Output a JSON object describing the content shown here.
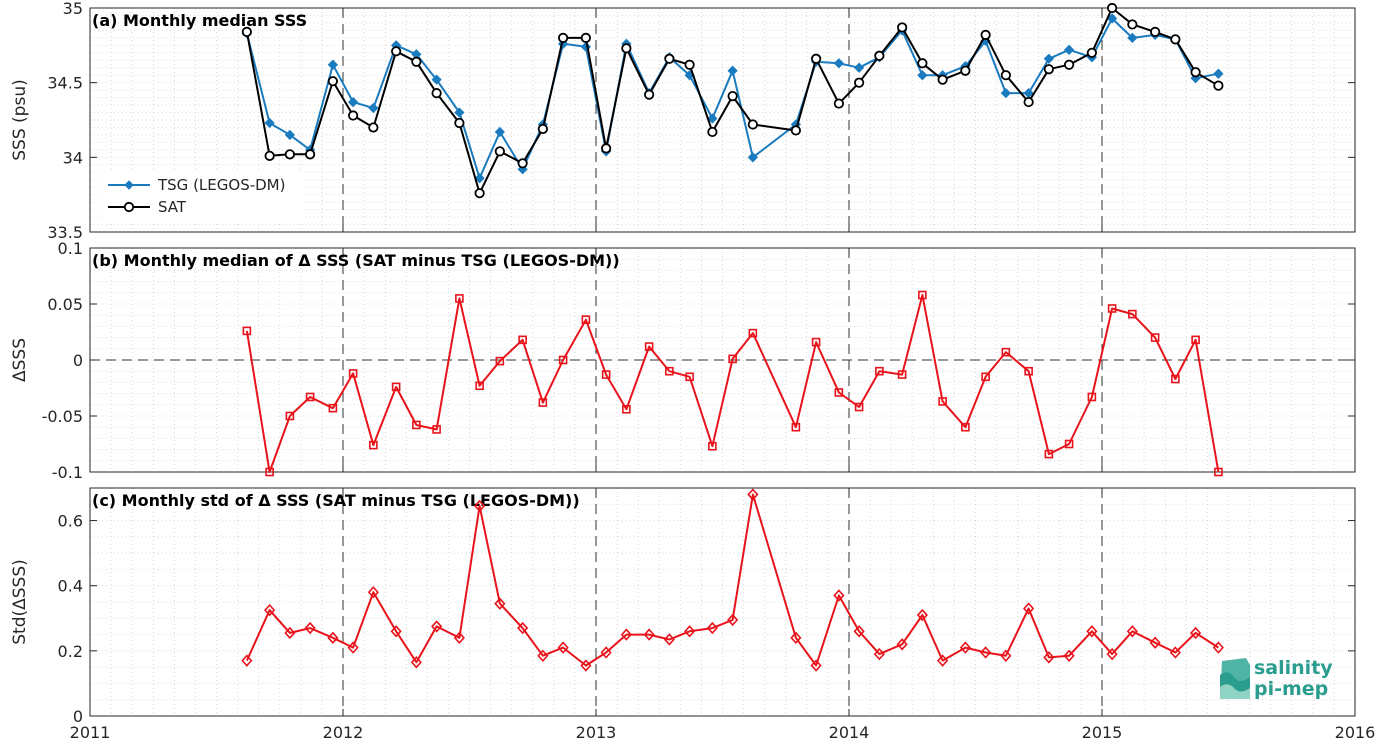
{
  "chart_data": [
    {
      "type": "line",
      "title": "(a) Monthly median SSS",
      "ylabel": "SSS (psu)",
      "xlim": [
        2011,
        2016
      ],
      "ylim": [
        33.5,
        35
      ],
      "yticks": [
        "33.5",
        "34",
        "34.5",
        "35"
      ],
      "xticks": [
        "2011",
        "2012",
        "2013",
        "2014",
        "2015",
        "2016"
      ],
      "vlines": [
        2012,
        2013,
        2014,
        2015
      ],
      "legend": {
        "placement": "lower-left",
        "entries": [
          "TSG (LEGOS-DM)",
          "SAT"
        ]
      },
      "series": [
        {
          "name": "TSG (LEGOS-DM)",
          "color": "#1a7bbf",
          "marker": "diamond",
          "x": [
            2011.62,
            2011.71,
            2011.79,
            2011.87,
            2011.96,
            2012.04,
            2012.12,
            2012.21,
            2012.29,
            2012.37,
            2012.46,
            2012.54,
            2012.62,
            2012.71,
            2012.79,
            2012.87,
            2012.96,
            2013.04,
            2013.12,
            2013.21,
            2013.29,
            2013.37,
            2013.46,
            2013.54,
            2013.62,
            2013.79,
            2013.87,
            2013.96,
            2014.04,
            2014.12,
            2014.21,
            2014.29,
            2014.37,
            2014.46,
            2014.54,
            2014.62,
            2014.71,
            2014.79,
            2014.87,
            2014.96,
            2015.04,
            2015.12,
            2015.21,
            2015.29,
            2015.37,
            2015.46
          ],
          "y": [
            34.83,
            34.23,
            34.15,
            34.05,
            34.62,
            34.37,
            34.33,
            34.75,
            34.69,
            34.52,
            34.3,
            33.86,
            34.17,
            33.92,
            34.22,
            34.76,
            34.74,
            34.04,
            34.76,
            34.43,
            34.67,
            34.55,
            34.26,
            34.58,
            34.0,
            34.22,
            34.64,
            34.63,
            34.6,
            34.67,
            34.85,
            34.55,
            34.55,
            34.61,
            34.78,
            34.43,
            34.43,
            34.66,
            34.72,
            34.67,
            34.93,
            34.8,
            34.82,
            34.79,
            34.53,
            34.56
          ]
        },
        {
          "name": "SAT",
          "color": "#000000",
          "marker": "circle",
          "x": [
            2011.62,
            2011.71,
            2011.79,
            2011.87,
            2011.96,
            2012.04,
            2012.12,
            2012.21,
            2012.29,
            2012.37,
            2012.46,
            2012.54,
            2012.62,
            2012.71,
            2012.79,
            2012.87,
            2012.96,
            2013.04,
            2013.12,
            2013.21,
            2013.29,
            2013.37,
            2013.46,
            2013.54,
            2013.62,
            2013.79,
            2013.87,
            2013.96,
            2014.04,
            2014.12,
            2014.21,
            2014.29,
            2014.37,
            2014.46,
            2014.54,
            2014.62,
            2014.71,
            2014.79,
            2014.87,
            2014.96,
            2015.04,
            2015.12,
            2015.21,
            2015.29,
            2015.37,
            2015.46
          ],
          "y": [
            34.84,
            34.01,
            34.02,
            34.02,
            34.51,
            34.28,
            34.2,
            34.71,
            34.64,
            34.43,
            34.23,
            33.76,
            34.04,
            33.96,
            34.19,
            34.8,
            34.8,
            34.06,
            34.73,
            34.42,
            34.66,
            34.62,
            34.17,
            34.41,
            34.22,
            34.18,
            34.66,
            34.36,
            34.5,
            34.68,
            34.87,
            34.63,
            34.52,
            34.58,
            34.82,
            34.55,
            34.37,
            34.59,
            34.62,
            34.7,
            35.0,
            34.89,
            34.84,
            34.79,
            34.57,
            34.48
          ]
        }
      ]
    },
    {
      "type": "line",
      "title": "(b) Monthly median of Δ SSS (SAT minus TSG (LEGOS-DM))",
      "ylabel": "ΔSSS",
      "xlim": [
        2011,
        2016
      ],
      "ylim": [
        -0.1,
        0.1
      ],
      "yticks": [
        "-0.1",
        "-0.05",
        "0",
        "0.05",
        "0.1"
      ],
      "xticks": [
        "2011",
        "2012",
        "2013",
        "2014",
        "2015",
        "2016"
      ],
      "vlines": [
        2012,
        2013,
        2014,
        2015
      ],
      "hline": 0,
      "series": [
        {
          "color": "#e8131b",
          "marker": "square",
          "x": [
            2011.62,
            2011.71,
            2011.79,
            2011.87,
            2011.96,
            2012.04,
            2012.12,
            2012.21,
            2012.29,
            2012.37,
            2012.46,
            2012.54,
            2012.62,
            2012.71,
            2012.79,
            2012.87,
            2012.96,
            2013.04,
            2013.12,
            2013.21,
            2013.29,
            2013.37,
            2013.46,
            2013.54,
            2013.62,
            2013.79,
            2013.87,
            2013.96,
            2014.04,
            2014.12,
            2014.21,
            2014.29,
            2014.37,
            2014.46,
            2014.54,
            2014.62,
            2014.71,
            2014.79,
            2014.87,
            2014.96,
            2015.04,
            2015.12,
            2015.21,
            2015.29,
            2015.37,
            2015.46
          ],
          "y": [
            0.026,
            -0.1,
            -0.05,
            -0.033,
            -0.043,
            -0.012,
            -0.076,
            -0.024,
            -0.058,
            -0.062,
            0.055,
            -0.023,
            -0.001,
            0.018,
            -0.038,
            0.0,
            0.036,
            -0.013,
            -0.044,
            0.012,
            -0.01,
            -0.015,
            -0.077,
            0.001,
            0.024,
            -0.06,
            0.016,
            -0.029,
            -0.042,
            -0.01,
            -0.013,
            0.058,
            -0.037,
            -0.06,
            -0.015,
            0.007,
            -0.01,
            -0.084,
            -0.075,
            -0.033,
            0.046,
            0.041,
            0.02,
            -0.017,
            0.018,
            -0.1
          ]
        }
      ]
    },
    {
      "type": "line",
      "title": "(c) Monthly std of Δ SSS (SAT minus TSG (LEGOS-DM))",
      "ylabel": "Std(ΔSSS)",
      "xlim": [
        2011,
        2016
      ],
      "ylim": [
        0,
        0.7
      ],
      "yticks": [
        "0",
        "0.2",
        "0.4",
        "0.6"
      ],
      "xticks": [
        "2011",
        "2012",
        "2013",
        "2014",
        "2015",
        "2016"
      ],
      "vlines": [
        2012,
        2013,
        2014,
        2015
      ],
      "series": [
        {
          "color": "#e8131b",
          "marker": "diamond",
          "x": [
            2011.62,
            2011.71,
            2011.79,
            2011.87,
            2011.96,
            2012.04,
            2012.12,
            2012.21,
            2012.29,
            2012.37,
            2012.46,
            2012.54,
            2012.62,
            2012.71,
            2012.79,
            2012.87,
            2012.96,
            2013.04,
            2013.12,
            2013.21,
            2013.29,
            2013.37,
            2013.46,
            2013.54,
            2013.62,
            2013.79,
            2013.87,
            2013.96,
            2014.04,
            2014.12,
            2014.21,
            2014.29,
            2014.37,
            2014.46,
            2014.54,
            2014.62,
            2014.71,
            2014.79,
            2014.87,
            2014.96,
            2015.04,
            2015.12,
            2015.21,
            2015.29,
            2015.37,
            2015.46
          ],
          "y": [
            0.17,
            0.325,
            0.255,
            0.27,
            0.24,
            0.21,
            0.38,
            0.26,
            0.165,
            0.275,
            0.24,
            0.645,
            0.345,
            0.27,
            0.185,
            0.21,
            0.155,
            0.195,
            0.25,
            0.25,
            0.235,
            0.26,
            0.27,
            0.295,
            0.68,
            0.24,
            0.155,
            0.37,
            0.26,
            0.19,
            0.22,
            0.31,
            0.17,
            0.21,
            0.195,
            0.185,
            0.33,
            0.18,
            0.185,
            0.26,
            0.19,
            0.26,
            0.225,
            0.195,
            0.255,
            0.21
          ]
        }
      ]
    }
  ],
  "logo": {
    "line1": "salinity",
    "line2": "pi-mep"
  },
  "colors": {
    "axis": "#262626",
    "grid": "#d9d9d9",
    "tsg": "#1a7bbf",
    "sat": "#000000",
    "delta": "#e8131b",
    "logo": "#2a9d8f"
  }
}
